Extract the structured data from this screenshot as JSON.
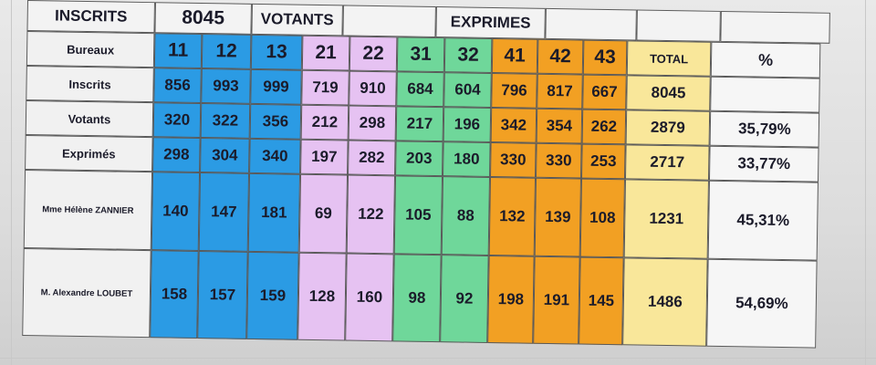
{
  "header": {
    "inscrits_label": "INSCRITS",
    "inscrits_value": "8045",
    "votants_label": "VOTANTS",
    "exprimes_label": "EXPRIMES"
  },
  "row_labels": {
    "bureaux": "Bureaux",
    "inscrits": "Inscrits",
    "votants": "Votants",
    "exprimes": "Exprimés",
    "candidate1": "Mme Hélène ZANNIER",
    "candidate2": "M. Alexandre LOUBET"
  },
  "columns": {
    "bureaux": [
      "11",
      "12",
      "13",
      "21",
      "22",
      "31",
      "32",
      "41",
      "42",
      "43"
    ],
    "total_label": "TOTAL",
    "percent_label": "%"
  },
  "rows": {
    "inscrits": [
      "856",
      "993",
      "999",
      "719",
      "910",
      "684",
      "604",
      "796",
      "817",
      "667"
    ],
    "votants": [
      "320",
      "322",
      "356",
      "212",
      "298",
      "217",
      "196",
      "342",
      "354",
      "262"
    ],
    "exprimes": [
      "298",
      "304",
      "340",
      "197",
      "282",
      "203",
      "180",
      "330",
      "330",
      "253"
    ],
    "candidate1": [
      "140",
      "147",
      "181",
      "69",
      "122",
      "105",
      "88",
      "132",
      "139",
      "108"
    ],
    "candidate2": [
      "158",
      "157",
      "159",
      "128",
      "160",
      "98",
      "92",
      "198",
      "191",
      "145"
    ]
  },
  "totals": {
    "inscrits": "8045",
    "votants": "2879",
    "exprimes": "2717",
    "candidate1": "1231",
    "candidate2": "1486"
  },
  "percents": {
    "votants": "35,79%",
    "exprimes": "33,77%",
    "candidate1": "45,31%",
    "candidate2": "54,69%"
  },
  "colors": {
    "group1": "#2b9be4",
    "group2": "#e6c2f2",
    "group3": "#6fd79a",
    "group4": "#f2a023",
    "total": "#f9e79a"
  }
}
